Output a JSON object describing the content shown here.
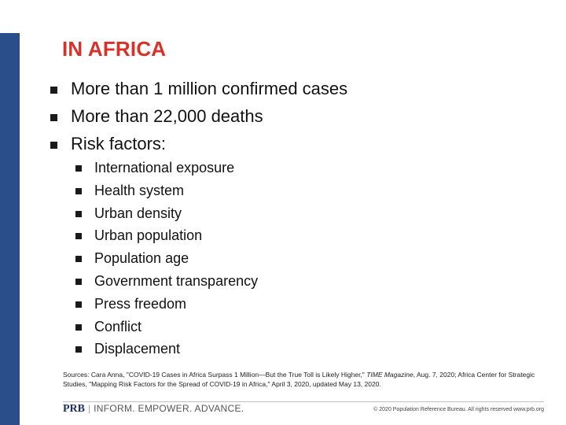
{
  "slide": {
    "title": "IN AFRICA",
    "bullets": [
      "More than 1 million confirmed cases",
      "More than 22,000 deaths",
      "Risk factors:"
    ],
    "risk_factors": [
      "International exposure",
      "Health system",
      "Urban density",
      "Urban population",
      "Population age",
      "Government transparency",
      "Press freedom",
      "Conflict",
      "Displacement"
    ],
    "sources": {
      "prefix": "Sources: Cara Anna, \"COVID-19 Cases in Africa Surpass 1 Million—But the True Toll is Likely Higher,\" ",
      "magazine": "TIME Magazine",
      "suffix": ", Aug. 7, 2020; Africa Center for Strategic Studies, \"Mapping Risk Factors for the Spread of COVID-19 in Africa,\" April 3, 2020, updated May 13, 2020."
    }
  },
  "footer": {
    "logo_text": "PRB",
    "separator": "|",
    "tagline": "INFORM. EMPOWER. ADVANCE.",
    "copyright": "© 2020 Population Reference Bureau. All rights reserved www.prb.org"
  },
  "colors": {
    "title": "#d8312a",
    "sidebar": "#2a4e8a",
    "brand": "#1f2f5e"
  }
}
